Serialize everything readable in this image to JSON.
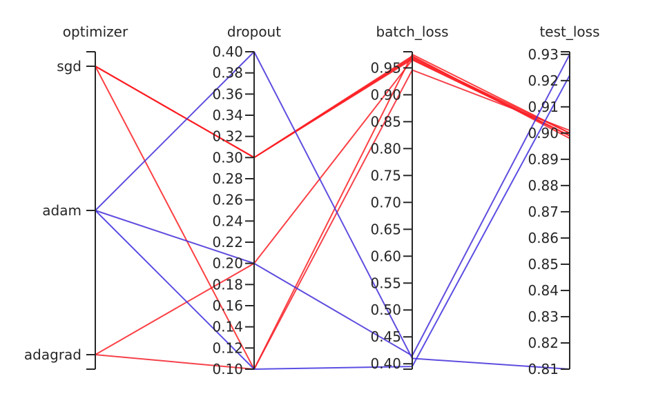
{
  "chart_data": {
    "type": "parallel_coordinates",
    "axes": [
      {
        "name": "optimizer",
        "kind": "categorical",
        "categories": [
          "sgd",
          "adam",
          "adagrad"
        ]
      },
      {
        "name": "dropout",
        "kind": "numeric",
        "range": [
          0.1,
          0.4
        ],
        "ticks": [
          "0.10",
          "0.12",
          "0.14",
          "0.16",
          "0.18",
          "0.20",
          "0.22",
          "0.24",
          "0.26",
          "0.28",
          "0.30",
          "0.32",
          "0.34",
          "0.36",
          "0.38",
          "0.40"
        ]
      },
      {
        "name": "batch_loss",
        "kind": "numeric",
        "range": [
          0.39,
          0.98
        ],
        "ticks": [
          "0.40",
          "0.45",
          "0.50",
          "0.55",
          "0.60",
          "0.65",
          "0.70",
          "0.75",
          "0.80",
          "0.85",
          "0.90",
          "0.95"
        ]
      },
      {
        "name": "test_loss",
        "kind": "numeric",
        "range": [
          0.81,
          0.931
        ],
        "ticks": [
          "0.81",
          "0.82",
          "0.83",
          "0.84",
          "0.85",
          "0.86",
          "0.87",
          "0.88",
          "0.89",
          "0.90",
          "0.91",
          "0.92",
          "0.93"
        ]
      }
    ],
    "color_scale": {
      "low": "#3b2fe0",
      "high": "#ff1f1f",
      "by": "batch_loss"
    },
    "series": [
      {
        "optimizer": "sgd",
        "dropout": 0.3,
        "batch_loss": 0.972,
        "test_loss": 0.898
      },
      {
        "optimizer": "sgd",
        "dropout": 0.3,
        "batch_loss": 0.97,
        "test_loss": 0.899
      },
      {
        "optimizer": "sgd",
        "dropout": 0.3,
        "batch_loss": 0.968,
        "test_loss": 0.9
      },
      {
        "optimizer": "sgd",
        "dropout": 0.3,
        "batch_loss": 0.966,
        "test_loss": 0.899
      },
      {
        "optimizer": "sgd",
        "dropout": 0.1,
        "batch_loss": 0.975,
        "test_loss": 0.9
      },
      {
        "optimizer": "adagrad",
        "dropout": 0.2,
        "batch_loss": 0.965,
        "test_loss": 0.899
      },
      {
        "optimizer": "adagrad",
        "dropout": 0.1,
        "batch_loss": 0.946,
        "test_loss": 0.901
      },
      {
        "optimizer": "adam",
        "dropout": 0.4,
        "batch_loss": 0.41,
        "test_loss": 0.81
      },
      {
        "optimizer": "adam",
        "dropout": 0.2,
        "batch_loss": 0.415,
        "test_loss": 0.93
      },
      {
        "optimizer": "adam",
        "dropout": 0.1,
        "batch_loss": 0.395,
        "test_loss": 0.922
      }
    ]
  }
}
